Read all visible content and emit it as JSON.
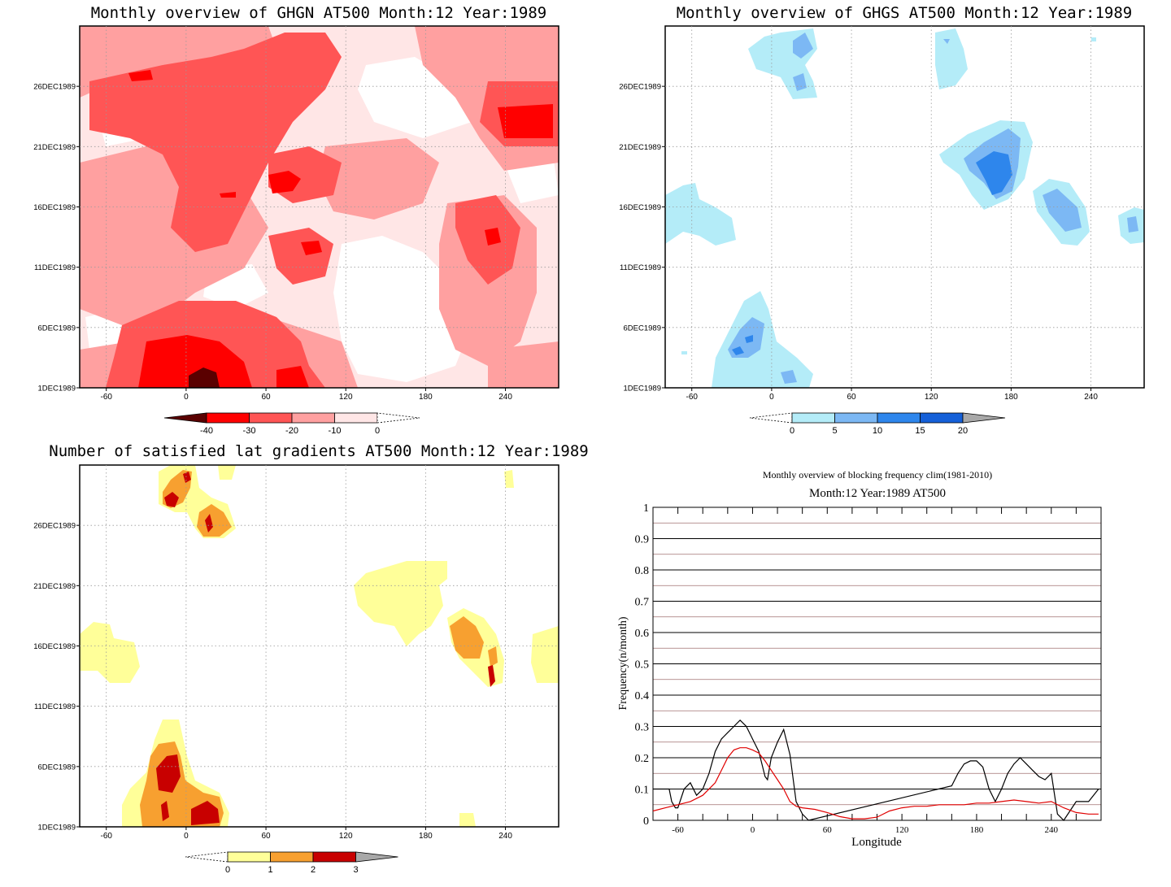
{
  "chart_data": [
    {
      "type": "heatmap",
      "title": "Monthly overview of GHGN AT500 Month:12 Year:1989",
      "xticks": [
        -60,
        0,
        60,
        120,
        180,
        240
      ],
      "yticks": [
        "1DEC1989",
        "6DEC1989",
        "11DEC1989",
        "16DEC1989",
        "21DEC1989",
        "26DEC1989"
      ],
      "xlim": [
        -80,
        280
      ],
      "ylim": [
        1,
        31
      ],
      "colorbar": {
        "ticks": [
          "-40",
          "-30",
          "-20",
          "-10",
          "0"
        ],
        "colors": [
          "#5a0000",
          "#ff0000",
          "#ff5555",
          "#ffa0a0",
          "#ffe6e6"
        ]
      }
    },
    {
      "type": "heatmap",
      "title": "Monthly overview of GHGS AT500 Month:12 Year:1989",
      "xticks": [
        -60,
        0,
        60,
        120,
        180,
        240
      ],
      "yticks": [
        "1DEC1989",
        "6DEC1989",
        "11DEC1989",
        "16DEC1989",
        "21DEC1989",
        "26DEC1989"
      ],
      "xlim": [
        -80,
        280
      ],
      "ylim": [
        1,
        31
      ],
      "colorbar": {
        "ticks": [
          "0",
          "5",
          "10",
          "15",
          "20"
        ],
        "colors": [
          "#b4ecf8",
          "#7cb8f4",
          "#2e86ec",
          "#1560d8",
          "#a8a8a8"
        ]
      }
    },
    {
      "type": "heatmap",
      "title": "Number of satisfied lat gradients AT500 Month:12 Year:1989",
      "xticks": [
        -60,
        0,
        60,
        120,
        180,
        240
      ],
      "yticks": [
        "1DEC1989",
        "6DEC1989",
        "11DEC1989",
        "16DEC1989",
        "21DEC1989",
        "26DEC1989"
      ],
      "xlim": [
        -80,
        280
      ],
      "ylim": [
        1,
        31
      ],
      "colorbar": {
        "ticks": [
          "0",
          "1",
          "2",
          "3"
        ],
        "colors": [
          "#ffff99",
          "#f7a030",
          "#c80000",
          "#a8a8a8"
        ]
      }
    },
    {
      "type": "line",
      "title": "Monthly overview of blocking frequency clim(1981-2010)",
      "subtitle": "Month:12 Year:1989  AT500",
      "xlabel": "Longitude",
      "ylabel": "Frequency(n/month)",
      "xlim": [
        -80,
        280
      ],
      "ylim": [
        0,
        1
      ],
      "xticks": [
        -60,
        0,
        60,
        120,
        180,
        240
      ],
      "yticks": [
        "0",
        "0.1",
        "0.2",
        "0.3",
        "0.4",
        "0.5",
        "0.6",
        "0.7",
        "0.8",
        "0.9",
        "1"
      ],
      "series": [
        {
          "color": "#000000",
          "x": [
            -80,
            -67,
            -65,
            -62,
            -60,
            -55,
            -50,
            -45,
            -40,
            -35,
            -30,
            -25,
            -20,
            -15,
            -10,
            -5,
            0,
            5,
            10,
            12,
            15,
            20,
            25,
            30,
            35,
            40,
            45,
            160,
            165,
            170,
            175,
            180,
            185,
            190,
            195,
            200,
            205,
            210,
            215,
            220,
            225,
            230,
            235,
            240,
            245,
            250,
            260,
            270,
            278
          ],
          "y": [
            0.1,
            0.1,
            0.06,
            0.04,
            0.04,
            0.1,
            0.12,
            0.08,
            0.1,
            0.15,
            0.22,
            0.26,
            0.28,
            0.3,
            0.32,
            0.3,
            0.26,
            0.22,
            0.14,
            0.13,
            0.2,
            0.25,
            0.29,
            0.21,
            0.06,
            0.02,
            0.0,
            0.11,
            0.15,
            0.18,
            0.19,
            0.19,
            0.17,
            0.1,
            0.06,
            0.1,
            0.15,
            0.18,
            0.2,
            0.18,
            0.16,
            0.14,
            0.13,
            0.15,
            0.02,
            0.0,
            0.06,
            0.06,
            0.1
          ]
        },
        {
          "color": "#e00000",
          "x": [
            -80,
            -70,
            -60,
            -50,
            -40,
            -30,
            -25,
            -20,
            -15,
            -10,
            -5,
            0,
            5,
            10,
            15,
            20,
            25,
            30,
            35,
            40,
            50,
            60,
            70,
            80,
            90,
            100,
            110,
            120,
            130,
            140,
            150,
            160,
            170,
            180,
            190,
            200,
            210,
            220,
            230,
            240,
            250,
            260,
            270,
            278
          ],
          "y": [
            0.03,
            0.04,
            0.05,
            0.06,
            0.08,
            0.12,
            0.16,
            0.2,
            0.225,
            0.232,
            0.232,
            0.225,
            0.215,
            0.19,
            0.16,
            0.13,
            0.1,
            0.06,
            0.045,
            0.04,
            0.035,
            0.025,
            0.012,
            0.005,
            0.005,
            0.01,
            0.03,
            0.04,
            0.045,
            0.045,
            0.05,
            0.05,
            0.05,
            0.055,
            0.055,
            0.06,
            0.065,
            0.06,
            0.055,
            0.06,
            0.04,
            0.025,
            0.02,
            0.02
          ]
        }
      ]
    }
  ]
}
